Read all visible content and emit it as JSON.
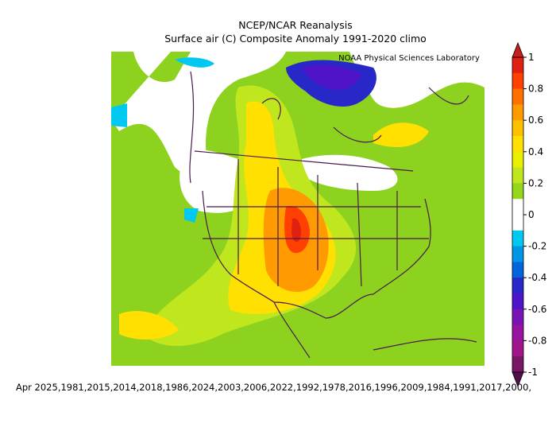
{
  "title": "NCEP/NCAR Reanalysis",
  "subtitle": "Surface air (C) Composite Anomaly 1991-2020 climo",
  "credit": "NOAA Physical Sciences Laboratory",
  "footer": "Apr 2025,1981,2015,2014,2018,1986,2024,2003,2006,2022,1992,1978,2016,1996,2009,1984,1991,2017,2000,",
  "colorbar": {
    "ticks": [
      1,
      0.8,
      0.6,
      0.4,
      0.2,
      0,
      -0.2,
      -0.4,
      -0.6,
      -0.8,
      -1
    ],
    "colors": [
      "#e02010",
      "#ff4000",
      "#ff7000",
      "#ff9a00",
      "#ffc000",
      "#ffe000",
      "#e8f000",
      "#c0e61e",
      "#96d71e",
      "#ffffff",
      "#ffffff",
      "#00c8f0",
      "#0096e6",
      "#0064dc",
      "#2828c8",
      "#5014c8",
      "#7814b4",
      "#9614a0",
      "#a0148c",
      "#7a1464"
    ],
    "over_color": "#c81e1e",
    "under_color": "#50104a"
  }
}
